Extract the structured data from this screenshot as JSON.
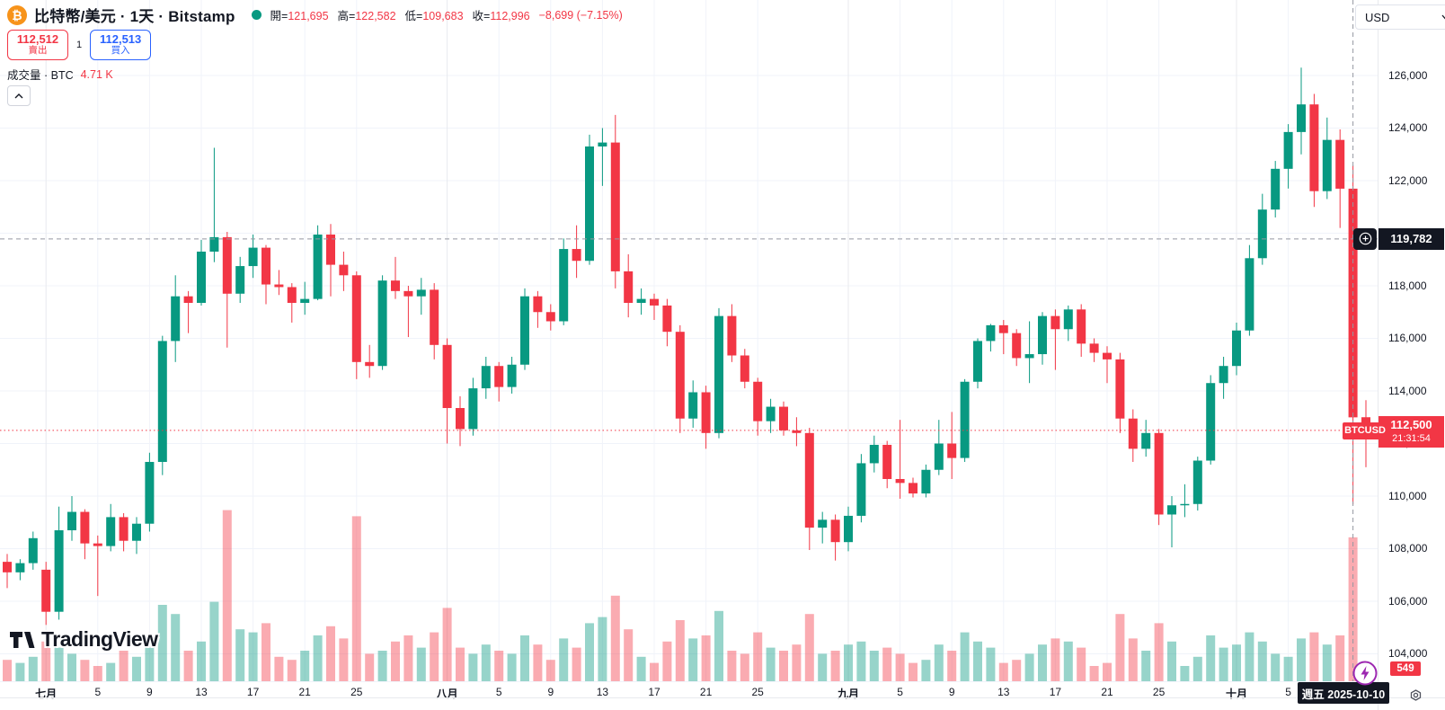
{
  "header": {
    "symbol_title": "比特幣/美元 · 1天 · Bitstamp",
    "ohlc_legend": {
      "open_label": "開=",
      "open": "121,695",
      "high_label": "高=",
      "high": "122,582",
      "low_label": "低=",
      "low": "109,683",
      "close_label": "收=",
      "close": "112,996",
      "change": "−8,699 (−7.15%)"
    }
  },
  "trade_panel": {
    "sell_price": "112,512",
    "sell_label": "賣出",
    "spread": "1",
    "buy_price": "112,513",
    "buy_label": "買入"
  },
  "volume_indicator": {
    "label": "成交量 · BTC",
    "value": "4.71 K"
  },
  "price_axis": {
    "currency": "USD"
  },
  "badges": {
    "crosshair_price": "119,782",
    "last_price": "112,500",
    "countdown": "21:31:54",
    "symbol_label": "BTCUSD",
    "last_volume": "549",
    "date": "週五 2025-10-10"
  },
  "watermark": "TradingView",
  "chart_data": {
    "type": "candlestick",
    "symbol": "BTCUSD",
    "exchange": "Bitstamp",
    "interval": "1天",
    "colors": {
      "up": "#089981",
      "down": "#F23645",
      "grid": "#F0F3FA",
      "month_grid": "#E8EAEE",
      "crosshair": "#9598A1",
      "price_line": "#F23645"
    },
    "y_axis": {
      "tick_step": 2000,
      "ticks": [
        126000,
        124000,
        122000,
        120000,
        118000,
        116000,
        114000,
        112000,
        110000,
        108000,
        106000,
        104000
      ]
    },
    "x_ticks": [
      {
        "label": "七月",
        "i": 3,
        "month": true
      },
      {
        "label": "5",
        "i": 7
      },
      {
        "label": "9",
        "i": 11
      },
      {
        "label": "13",
        "i": 15
      },
      {
        "label": "17",
        "i": 19
      },
      {
        "label": "21",
        "i": 23
      },
      {
        "label": "25",
        "i": 27
      },
      {
        "label": "八月",
        "i": 34,
        "month": true
      },
      {
        "label": "5",
        "i": 38
      },
      {
        "label": "9",
        "i": 42
      },
      {
        "label": "13",
        "i": 46
      },
      {
        "label": "17",
        "i": 50
      },
      {
        "label": "21",
        "i": 54
      },
      {
        "label": "25",
        "i": 58
      },
      {
        "label": "九月",
        "i": 65,
        "month": true
      },
      {
        "label": "5",
        "i": 69
      },
      {
        "label": "9",
        "i": 73
      },
      {
        "label": "13",
        "i": 77
      },
      {
        "label": "17",
        "i": 81
      },
      {
        "label": "21",
        "i": 85
      },
      {
        "label": "25",
        "i": 89
      },
      {
        "label": "十月",
        "i": 95,
        "month": true
      },
      {
        "label": "5",
        "i": 99
      }
    ],
    "crosshair": {
      "price": 119782,
      "candle_index": 104
    },
    "current_price": 112500,
    "volume_unit": "K BTC",
    "candles": [
      [
        "06-28",
        107500,
        107800,
        106500,
        107100,
        0.7
      ],
      [
        "06-29",
        107100,
        107600,
        106800,
        107450,
        0.6
      ],
      [
        "06-30",
        107450,
        108650,
        107200,
        108400,
        0.8
      ],
      [
        "07-01",
        107200,
        107500,
        105100,
        105600,
        1.3
      ],
      [
        "07-02",
        105600,
        109600,
        105300,
        108700,
        1.1
      ],
      [
        "07-03",
        108700,
        110000,
        108300,
        109400,
        0.9
      ],
      [
        "07-04",
        109400,
        109500,
        107600,
        108200,
        0.7
      ],
      [
        "07-05",
        108200,
        108500,
        106200,
        108100,
        0.5
      ],
      [
        "07-06",
        108100,
        109700,
        107900,
        109200,
        0.6
      ],
      [
        "07-07",
        109200,
        109350,
        107900,
        108300,
        1.0
      ],
      [
        "07-08",
        108300,
        109200,
        107800,
        108950,
        0.8
      ],
      [
        "07-09",
        108950,
        111650,
        108650,
        111300,
        1.4
      ],
      [
        "07-10",
        111300,
        116100,
        110800,
        115900,
        2.5
      ],
      [
        "07-11",
        115900,
        118400,
        115100,
        117600,
        2.2
      ],
      [
        "07-12",
        117600,
        117800,
        116200,
        117350,
        1.0
      ],
      [
        "07-13",
        117350,
        119750,
        117250,
        119300,
        1.3
      ],
      [
        "07-14",
        119300,
        123250,
        118900,
        119850,
        2.6
      ],
      [
        "07-15",
        119850,
        120050,
        115650,
        117700,
        5.6
      ],
      [
        "07-16",
        117700,
        119100,
        117350,
        118750,
        1.7
      ],
      [
        "07-17",
        118750,
        119950,
        118300,
        119450,
        1.6
      ],
      [
        "07-18",
        119450,
        119550,
        117300,
        118050,
        1.9
      ],
      [
        "07-19",
        118050,
        118600,
        117650,
        117950,
        0.8
      ],
      [
        "07-20",
        117950,
        118100,
        116600,
        117350,
        0.7
      ],
      [
        "07-21",
        117350,
        118150,
        116900,
        117500,
        1.0
      ],
      [
        "07-22",
        117500,
        120300,
        117450,
        119950,
        1.5
      ],
      [
        "07-23",
        119950,
        120350,
        117600,
        118800,
        1.8
      ],
      [
        "07-24",
        118800,
        119300,
        117800,
        118400,
        1.4
      ],
      [
        "07-25",
        118400,
        118550,
        114450,
        115100,
        5.4
      ],
      [
        "07-26",
        115100,
        115750,
        114500,
        114950,
        0.9
      ],
      [
        "07-27",
        114950,
        118400,
        114800,
        118200,
        1.0
      ],
      [
        "07-28",
        118200,
        119100,
        117500,
        117800,
        1.3
      ],
      [
        "07-29",
        117800,
        118000,
        116050,
        117600,
        1.5
      ],
      [
        "07-30",
        117600,
        118300,
        116900,
        117850,
        1.1
      ],
      [
        "07-31",
        117850,
        118100,
        115200,
        115750,
        1.6
      ],
      [
        "08-01",
        115750,
        116000,
        112000,
        113350,
        2.4
      ],
      [
        "08-02",
        113350,
        113800,
        111900,
        112550,
        1.1
      ],
      [
        "08-03",
        112550,
        114500,
        112300,
        114100,
        0.9
      ],
      [
        "08-04",
        114100,
        115300,
        113700,
        114950,
        1.2
      ],
      [
        "08-05",
        114950,
        115100,
        113600,
        114150,
        1.0
      ],
      [
        "08-06",
        114150,
        115300,
        113900,
        115000,
        0.9
      ],
      [
        "08-07",
        115000,
        117900,
        114800,
        117600,
        1.5
      ],
      [
        "08-08",
        117600,
        117800,
        116400,
        117000,
        1.2
      ],
      [
        "08-09",
        117000,
        117300,
        116300,
        116650,
        0.7
      ],
      [
        "08-10",
        116650,
        119800,
        116500,
        119400,
        1.4
      ],
      [
        "08-11",
        119400,
        120300,
        118300,
        118950,
        1.1
      ],
      [
        "08-12",
        118950,
        123750,
        118800,
        123300,
        1.9
      ],
      [
        "08-13",
        123300,
        124000,
        121800,
        123450,
        2.1
      ],
      [
        "08-14",
        123450,
        124500,
        117900,
        118550,
        2.8
      ],
      [
        "08-15",
        118550,
        119200,
        116800,
        117350,
        1.7
      ],
      [
        "08-16",
        117350,
        117900,
        116900,
        117500,
        0.8
      ],
      [
        "08-17",
        117500,
        117700,
        116700,
        117250,
        0.6
      ],
      [
        "08-18",
        117250,
        117500,
        115700,
        116250,
        1.3
      ],
      [
        "08-19",
        116250,
        116500,
        112400,
        112950,
        2.0
      ],
      [
        "08-20",
        112950,
        114400,
        112600,
        113950,
        1.4
      ],
      [
        "08-21",
        113950,
        114200,
        111800,
        112400,
        1.5
      ],
      [
        "08-22",
        112400,
        117150,
        112200,
        116850,
        2.3
      ],
      [
        "08-23",
        116850,
        117300,
        115100,
        115350,
        1.0
      ],
      [
        "08-24",
        115350,
        115600,
        114100,
        114350,
        0.9
      ],
      [
        "08-25",
        114350,
        114500,
        112300,
        112850,
        1.6
      ],
      [
        "08-26",
        112850,
        113700,
        112400,
        113400,
        1.1
      ],
      [
        "08-27",
        113400,
        113600,
        112300,
        112500,
        1.0
      ],
      [
        "08-28",
        112500,
        113000,
        111900,
        112400,
        1.2
      ],
      [
        "08-29",
        112400,
        112600,
        107950,
        108800,
        2.2
      ],
      [
        "08-30",
        108800,
        109400,
        108200,
        109100,
        0.9
      ],
      [
        "08-31",
        109100,
        109300,
        107550,
        108250,
        1.0
      ],
      [
        "09-01",
        108250,
        109600,
        107900,
        109250,
        1.2
      ],
      [
        "09-02",
        109250,
        111600,
        109000,
        111250,
        1.3
      ],
      [
        "09-03",
        111250,
        112300,
        110900,
        111950,
        1.0
      ],
      [
        "09-04",
        111950,
        112100,
        110300,
        110650,
        1.1
      ],
      [
        "09-05",
        110650,
        112900,
        109900,
        110500,
        0.9
      ],
      [
        "09-06",
        110500,
        110700,
        109950,
        110100,
        0.6
      ],
      [
        "09-07",
        110100,
        111200,
        109950,
        111000,
        0.7
      ],
      [
        "09-08",
        111000,
        112900,
        110800,
        112000,
        1.2
      ],
      [
        "09-09",
        112000,
        113200,
        110650,
        111450,
        1.0
      ],
      [
        "09-10",
        111450,
        114450,
        111300,
        114350,
        1.6
      ],
      [
        "09-11",
        114350,
        116000,
        114100,
        115900,
        1.3
      ],
      [
        "09-12",
        115900,
        116550,
        115500,
        116500,
        1.1
      ],
      [
        "09-13",
        116500,
        116700,
        115400,
        116200,
        0.6
      ],
      [
        "09-14",
        116200,
        116350,
        114950,
        115250,
        0.7
      ],
      [
        "09-15",
        115250,
        116650,
        114300,
        115400,
        0.9
      ],
      [
        "09-16",
        115400,
        117000,
        115000,
        116850,
        1.2
      ],
      [
        "09-17",
        116850,
        117100,
        114800,
        116350,
        1.4
      ],
      [
        "09-18",
        116350,
        117250,
        115900,
        117100,
        1.3
      ],
      [
        "09-19",
        117100,
        117300,
        115300,
        115800,
        1.1
      ],
      [
        "09-20",
        115800,
        116000,
        115100,
        115450,
        0.5
      ],
      [
        "09-21",
        115450,
        115700,
        114300,
        115200,
        0.6
      ],
      [
        "09-22",
        115200,
        115450,
        112400,
        112950,
        2.2
      ],
      [
        "09-23",
        112950,
        113300,
        111300,
        111800,
        1.4
      ],
      [
        "09-24",
        111800,
        112900,
        111500,
        112400,
        1.0
      ],
      [
        "09-25",
        112400,
        112550,
        108900,
        109300,
        1.9
      ],
      [
        "09-26",
        109300,
        110000,
        108050,
        109650,
        1.3
      ],
      [
        "09-27",
        109650,
        110450,
        109200,
        109700,
        0.5
      ],
      [
        "09-28",
        109700,
        111500,
        109450,
        111350,
        0.8
      ],
      [
        "09-29",
        111350,
        114600,
        111200,
        114300,
        1.5
      ],
      [
        "09-30",
        114300,
        115300,
        113700,
        114950,
        1.1
      ],
      [
        "10-01",
        114950,
        116600,
        114600,
        116300,
        1.2
      ],
      [
        "10-02",
        116300,
        119550,
        116100,
        119050,
        1.6
      ],
      [
        "10-03",
        119050,
        121500,
        118800,
        120900,
        1.3
      ],
      [
        "10-04",
        120900,
        122750,
        120600,
        122450,
        0.9
      ],
      [
        "10-05",
        122450,
        124150,
        121700,
        123850,
        0.8
      ],
      [
        "10-06",
        123850,
        126300,
        123000,
        124900,
        1.4
      ],
      [
        "10-07",
        124900,
        125300,
        121000,
        121600,
        1.6
      ],
      [
        "10-08",
        121600,
        124400,
        121300,
        123550,
        1.2
      ],
      [
        "10-09",
        123550,
        123950,
        120200,
        121695,
        1.5
      ],
      [
        "10-10",
        121695,
        122582,
        109683,
        112996,
        4.71
      ],
      [
        "10-11",
        113000,
        113650,
        111100,
        112500,
        0.549
      ]
    ]
  }
}
